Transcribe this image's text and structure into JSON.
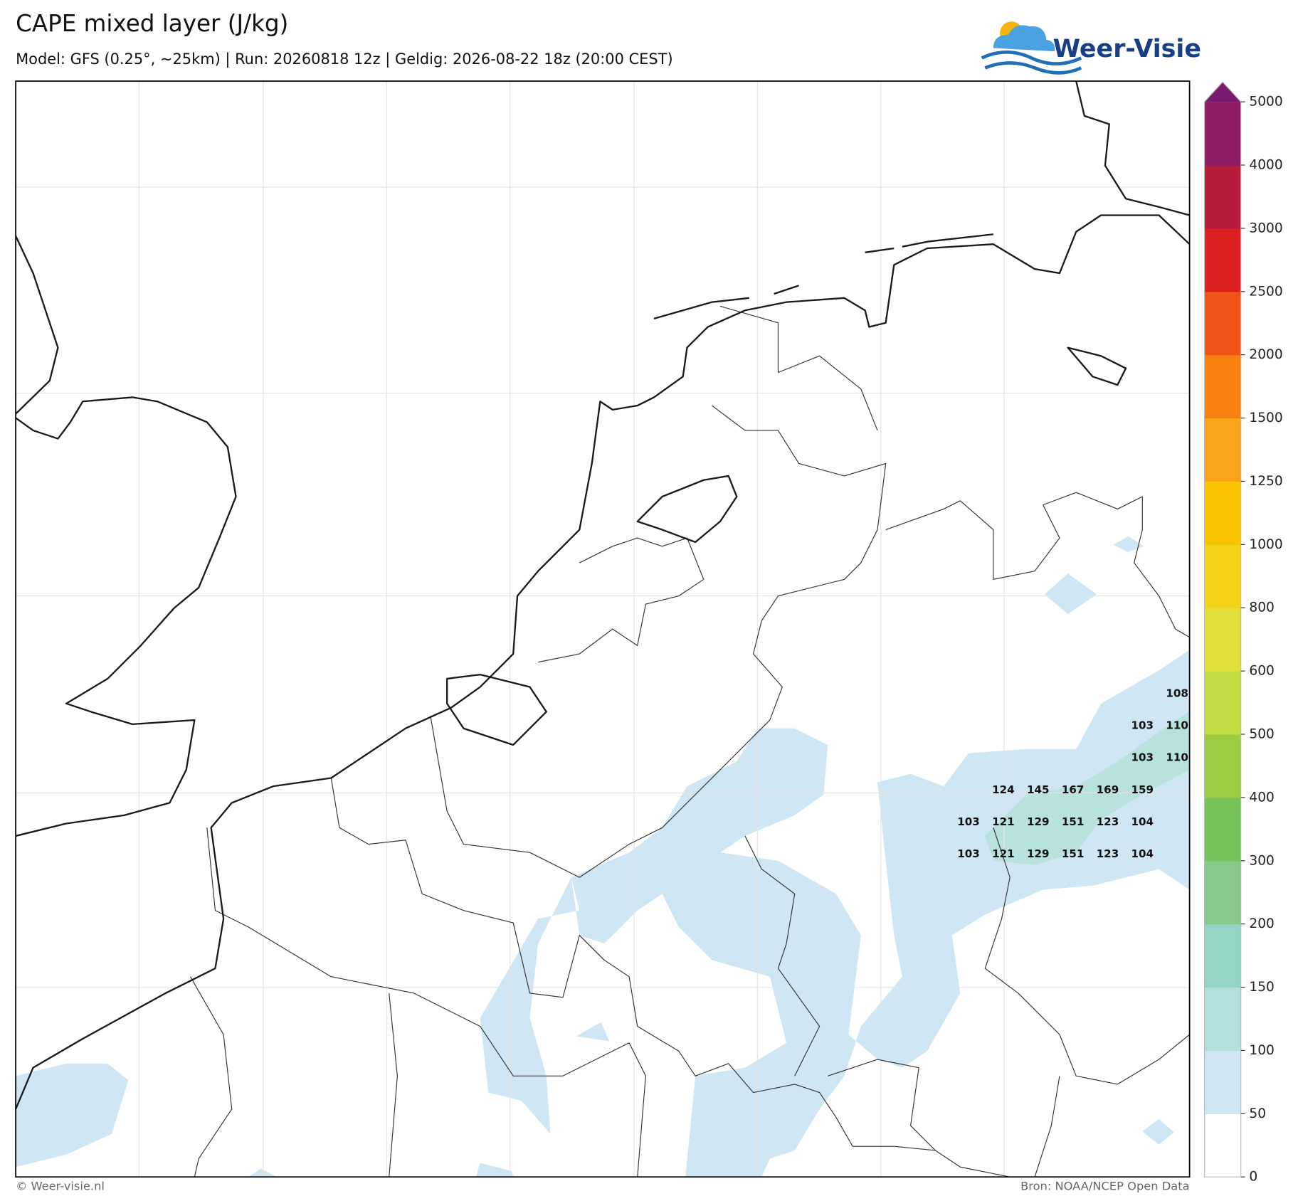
{
  "header": {
    "title": "CAPE mixed layer (J/kg)",
    "subtitle": "Model: GFS (0.25°, ~25km)  |  Run: 20260818 12z  |  Geldig: 2026-08-22 18z (20:00 CEST)"
  },
  "logo": "Weer-Visie",
  "colorbar": {
    "ticks": [
      0,
      50,
      100,
      150,
      200,
      300,
      400,
      500,
      600,
      800,
      1000,
      1250,
      1500,
      2000,
      2500,
      3000,
      4000,
      5000
    ],
    "colors": [
      "#ffffff",
      "#cfe6f5",
      "#b3e0dc",
      "#93d4c4",
      "#86c98a",
      "#78c25a",
      "#9ccc44",
      "#c2dc44",
      "#e0e03a",
      "#f2d31a",
      "#fbc400",
      "#fba41a",
      "#f88010",
      "#ee5418",
      "#dc2020",
      "#b81c3c",
      "#8c1a66"
    ],
    "extend_color": "#7a1a6e"
  },
  "value_labels": {
    "rows": [
      [
        null,
        null,
        null,
        null,
        null,
        null,
        108
      ],
      [
        null,
        null,
        null,
        null,
        null,
        103,
        110
      ],
      [
        null,
        null,
        null,
        null,
        null,
        103,
        110
      ],
      [
        null,
        124,
        145,
        167,
        169,
        159,
        null
      ],
      [
        103,
        121,
        129,
        151,
        123,
        104,
        null
      ],
      [
        103,
        121,
        129,
        151,
        123,
        104,
        null
      ]
    ]
  },
  "footer": {
    "left": "© Weer-visie.nl",
    "right": "Bron: NOAA/NCEP Open Data"
  }
}
